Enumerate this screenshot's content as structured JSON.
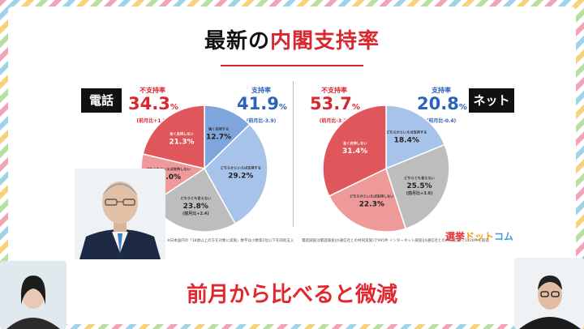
{
  "title": {
    "main": "最新の",
    "accent": "内閣支持率"
  },
  "left": {
    "tag": "電話",
    "disapprove": {
      "label": "不支持率",
      "value": "34.3",
      "unit": "%",
      "change": "(前月比+1.5)"
    },
    "approve": {
      "label": "支持率",
      "value": "41.9",
      "unit": "%",
      "change": "(前月比-3.9)"
    }
  },
  "right": {
    "tag": "ネット",
    "disapprove": {
      "label": "不支持率",
      "value": "53.7",
      "unit": "%",
      "change": "(前月比-3.2)"
    },
    "approve": {
      "label": "支持率",
      "value": "20.8",
      "unit": "%",
      "change": "(前月比-0.4)"
    }
  },
  "chart_data": [
    {
      "type": "pie",
      "slices": [
        {
          "label": "強く支持する",
          "value": 12.7,
          "color": "#7fa6dc"
        },
        {
          "label": "どちらかといえば支持する",
          "value": 29.2,
          "color": "#a8c3ea"
        },
        {
          "label": "どちらとも言えない",
          "value": 23.8,
          "extra": "(前月比+2.4)",
          "color": "#bdbdbd"
        },
        {
          "label": "どちらかといえば支持しない",
          "value": 13.0,
          "color": "#ee9a9a"
        },
        {
          "label": "全く支持しない",
          "value": 21.3,
          "color": "#e0575b"
        }
      ]
    },
    {
      "type": "pie",
      "slices": [
        {
          "label": "どちらかといえば支持する",
          "value": 18.4,
          "color": "#a8c3ea"
        },
        {
          "label": "どちらとも言えない",
          "value": 25.5,
          "extra": "(前月比+3.6)",
          "color": "#bdbdbd"
        },
        {
          "label": "どちらかといえば支持しない",
          "value": 22.3,
          "color": "#ee9a9a"
        },
        {
          "label": "全く支持しない",
          "value": 31.4,
          "color": "#e0575b"
        }
      ]
    }
  ],
  "notes": {
    "left": "※日本国内の「18歳以上の方を対象に実施」数字は小数第2位以下を四捨五入",
    "right": "電話調査は電話調査(JX通信社との共同実施)で995件  インターネット調査(JX通信社との共同実施)で1226件を取得"
  },
  "logo": {
    "a": "選挙",
    "b": "ドット",
    "c": "コム"
  },
  "banner": "前月から比べると微減"
}
